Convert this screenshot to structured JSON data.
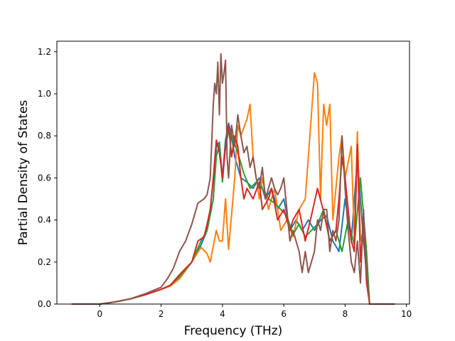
{
  "chart_data": {
    "type": "line",
    "title": "",
    "xlabel": "Frequency (THz)",
    "ylabel": "Partial Density of States",
    "xlim": [
      -1.4,
      10.1
    ],
    "ylim": [
      0.0,
      1.25
    ],
    "xticks": [
      0,
      2,
      4,
      6,
      8,
      10
    ],
    "yticks": [
      0.0,
      0.2,
      0.4,
      0.6,
      0.8,
      1.0,
      1.2
    ],
    "xtick_labels": [
      "0",
      "2",
      "4",
      "6",
      "8",
      "10"
    ],
    "ytick_labels": [
      "0.0",
      "0.2",
      "0.4",
      "0.6",
      "0.8",
      "1.0",
      "1.2"
    ],
    "grid": false,
    "series": [
      {
        "color": "#1f77b4",
        "x": [
          -0.9,
          0.0,
          0.5,
          1.0,
          1.5,
          2.0,
          2.3,
          2.6,
          3.0,
          3.3,
          3.5,
          3.7,
          3.8,
          3.9,
          4.0,
          4.1,
          4.2,
          4.3,
          4.4,
          4.6,
          4.8,
          5.0,
          5.2,
          5.4,
          5.6,
          5.8,
          6.0,
          6.2,
          6.4,
          6.6,
          6.8,
          7.0,
          7.2,
          7.4,
          7.6,
          7.8,
          8.0,
          8.2,
          8.4,
          8.6,
          8.8,
          9.6
        ],
        "y": [
          0.0,
          0.0,
          0.01,
          0.025,
          0.045,
          0.07,
          0.09,
          0.12,
          0.2,
          0.28,
          0.35,
          0.5,
          0.75,
          0.77,
          0.6,
          0.78,
          0.86,
          0.8,
          0.7,
          0.6,
          0.58,
          0.55,
          0.6,
          0.5,
          0.55,
          0.45,
          0.5,
          0.35,
          0.4,
          0.35,
          0.4,
          0.35,
          0.4,
          0.42,
          0.3,
          0.25,
          0.5,
          0.3,
          0.7,
          0.3,
          0.0,
          0.0
        ]
      },
      {
        "color": "#ff7f0e",
        "x": [
          -0.9,
          0.0,
          0.5,
          1.0,
          1.5,
          2.0,
          2.3,
          2.6,
          3.0,
          3.3,
          3.5,
          3.6,
          3.8,
          3.9,
          4.0,
          4.1,
          4.2,
          4.4,
          4.5,
          4.6,
          4.8,
          4.9,
          5.0,
          5.2,
          5.3,
          5.5,
          5.7,
          5.9,
          6.1,
          6.3,
          6.5,
          6.7,
          6.9,
          7.0,
          7.1,
          7.2,
          7.3,
          7.4,
          7.5,
          7.6,
          7.7,
          7.8,
          7.9,
          8.0,
          8.2,
          8.3,
          8.4,
          8.5,
          8.6,
          8.7,
          8.8,
          9.6
        ],
        "y": [
          0.0,
          0.0,
          0.01,
          0.025,
          0.045,
          0.07,
          0.085,
          0.12,
          0.2,
          0.27,
          0.24,
          0.2,
          0.35,
          0.3,
          0.3,
          0.5,
          0.26,
          0.6,
          0.85,
          0.8,
          0.88,
          0.95,
          0.7,
          0.5,
          0.6,
          0.45,
          0.55,
          0.35,
          0.4,
          0.32,
          0.45,
          0.5,
          0.9,
          1.1,
          1.05,
          0.5,
          0.95,
          0.85,
          0.95,
          0.4,
          0.55,
          0.7,
          0.8,
          0.6,
          0.75,
          0.3,
          0.82,
          0.3,
          0.35,
          0.2,
          0.0,
          0.0
        ]
      },
      {
        "color": "#2ca02c",
        "x": [
          -0.9,
          0.0,
          0.5,
          1.0,
          1.5,
          2.0,
          2.3,
          2.6,
          3.0,
          3.3,
          3.5,
          3.7,
          3.8,
          3.9,
          4.0,
          4.1,
          4.2,
          4.3,
          4.5,
          4.7,
          4.9,
          5.1,
          5.3,
          5.5,
          5.7,
          5.9,
          6.1,
          6.3,
          6.5,
          6.7,
          6.9,
          7.1,
          7.3,
          7.5,
          7.7,
          7.9,
          8.1,
          8.3,
          8.5,
          8.7,
          8.8,
          9.6
        ],
        "y": [
          0.0,
          0.0,
          0.01,
          0.025,
          0.045,
          0.07,
          0.09,
          0.13,
          0.2,
          0.3,
          0.35,
          0.5,
          0.7,
          0.76,
          0.58,
          0.75,
          0.82,
          0.8,
          0.72,
          0.62,
          0.55,
          0.58,
          0.55,
          0.5,
          0.48,
          0.45,
          0.42,
          0.33,
          0.38,
          0.32,
          0.35,
          0.38,
          0.45,
          0.3,
          0.35,
          0.25,
          0.4,
          0.28,
          0.6,
          0.25,
          0.0,
          0.0
        ]
      },
      {
        "color": "#d62728",
        "x": [
          -0.9,
          0.0,
          0.5,
          1.0,
          1.5,
          2.0,
          2.3,
          2.6,
          3.0,
          3.2,
          3.4,
          3.5,
          3.6,
          3.7,
          3.8,
          3.9,
          4.0,
          4.1,
          4.2,
          4.3,
          4.4,
          4.5,
          4.6,
          4.7,
          4.8,
          5.0,
          5.2,
          5.3,
          5.5,
          5.6,
          5.8,
          6.0,
          6.2,
          6.3,
          6.5,
          6.7,
          6.9,
          7.1,
          7.3,
          7.5,
          7.7,
          7.8,
          7.9,
          8.0,
          8.1,
          8.2,
          8.3,
          8.4,
          8.5,
          8.6,
          8.7,
          8.8,
          9.6
        ],
        "y": [
          0.0,
          0.0,
          0.01,
          0.025,
          0.045,
          0.07,
          0.09,
          0.14,
          0.2,
          0.3,
          0.32,
          0.38,
          0.45,
          0.6,
          0.78,
          0.72,
          0.6,
          0.75,
          0.85,
          0.7,
          0.8,
          0.75,
          0.6,
          0.5,
          0.55,
          0.5,
          0.58,
          0.45,
          0.5,
          0.55,
          0.4,
          0.45,
          0.35,
          0.4,
          0.45,
          0.3,
          0.42,
          0.55,
          0.44,
          0.3,
          0.35,
          0.5,
          0.7,
          0.6,
          0.45,
          0.3,
          0.25,
          0.76,
          0.2,
          0.4,
          0.1,
          0.0,
          0.0
        ]
      },
      {
        "color": "#8c564b",
        "x": [
          -0.9,
          0.0,
          0.5,
          1.0,
          1.5,
          2.0,
          2.2,
          2.4,
          2.6,
          2.8,
          3.0,
          3.2,
          3.4,
          3.5,
          3.6,
          3.7,
          3.75,
          3.8,
          3.85,
          3.9,
          3.95,
          4.0,
          4.05,
          4.1,
          4.15,
          4.2,
          4.3,
          4.4,
          4.5,
          4.6,
          4.7,
          4.8,
          4.9,
          5.0,
          5.1,
          5.2,
          5.3,
          5.4,
          5.5,
          5.6,
          5.7,
          5.8,
          5.9,
          6.0,
          6.1,
          6.2,
          6.3,
          6.4,
          6.5,
          6.6,
          6.7,
          6.8,
          6.9,
          7.0,
          7.1,
          7.2,
          7.3,
          7.4,
          7.5,
          7.6,
          7.7,
          7.8,
          7.9,
          8.0,
          8.1,
          8.2,
          8.3,
          8.4,
          8.5,
          8.6,
          8.7,
          8.8,
          9.6
        ],
        "y": [
          0.0,
          0.0,
          0.01,
          0.025,
          0.05,
          0.08,
          0.12,
          0.17,
          0.25,
          0.3,
          0.38,
          0.48,
          0.5,
          0.52,
          0.6,
          0.95,
          1.05,
          1.0,
          1.15,
          0.9,
          1.19,
          1.05,
          1.1,
          1.16,
          0.7,
          0.6,
          0.85,
          0.75,
          0.9,
          0.8,
          0.72,
          0.75,
          0.65,
          0.7,
          0.6,
          0.55,
          0.65,
          0.5,
          0.55,
          0.6,
          0.55,
          0.52,
          0.55,
          0.6,
          0.45,
          0.3,
          0.35,
          0.3,
          0.25,
          0.15,
          0.25,
          0.15,
          0.2,
          0.25,
          0.4,
          0.35,
          0.45,
          0.45,
          0.25,
          0.35,
          0.3,
          0.4,
          0.8,
          0.55,
          0.35,
          0.2,
          0.15,
          0.3,
          0.1,
          0.45,
          0.15,
          0.0,
          0.0
        ]
      }
    ]
  }
}
